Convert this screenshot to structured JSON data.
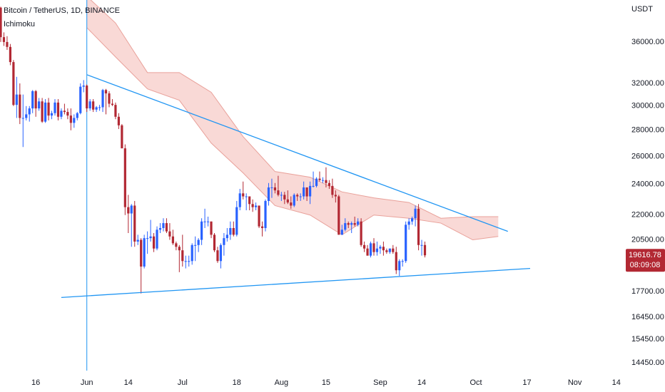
{
  "chart_data": {
    "type": "candlestick",
    "title": "Bitcoin / TetherUS, 1D, BINANCE",
    "subtitle": "Ichimoku",
    "y_axis_label": "USDT",
    "countdown": "08:09:08",
    "log_scale": true,
    "up_color": "#2962ff",
    "down_color": "#b22833",
    "ylim": [
      14130,
      40570
    ],
    "yticks": [
      {
        "value": 36000,
        "label": "36000.00"
      },
      {
        "value": 32000,
        "label": "32000.00"
      },
      {
        "value": 30000,
        "label": "30000.00"
      },
      {
        "value": 28000,
        "label": "28000.00"
      },
      {
        "value": 26000,
        "label": "26000.00"
      },
      {
        "value": 24000,
        "label": "24000.00"
      },
      {
        "value": 22000,
        "label": "22000.00"
      },
      {
        "value": 20500,
        "label": "20500.00"
      },
      {
        "value": 17700,
        "label": "17700.00"
      },
      {
        "value": 16450,
        "label": "16450.00"
      },
      {
        "value": 15450,
        "label": "15450.00"
      },
      {
        "value": 14450,
        "label": "14450.00"
      }
    ],
    "xticks": [
      {
        "value": "May 16",
        "label": "16"
      },
      {
        "value": "Jun 1",
        "label": "Jun"
      },
      {
        "value": "Jun 14",
        "label": "14"
      },
      {
        "value": "Jul 1",
        "label": "Jul"
      },
      {
        "value": "Jul 18",
        "label": "18"
      },
      {
        "value": "Aug 1",
        "label": "Aug"
      },
      {
        "value": "Aug 15",
        "label": "15"
      },
      {
        "value": "Sep 1",
        "label": "Sep"
      },
      {
        "value": "Sep 14",
        "label": "14"
      },
      {
        "value": "Oct 1",
        "label": "Oct"
      },
      {
        "value": "Oct 17",
        "label": "17"
      },
      {
        "value": "Nov 1",
        "label": "Nov"
      },
      {
        "value": "Nov 14",
        "label": "14"
      }
    ],
    "x": [
      "May 5",
      "May 6",
      "May 7",
      "May 8",
      "May 9",
      "May 10",
      "May 11",
      "May 12",
      "May 13",
      "May 14",
      "May 15",
      "May 16",
      "May 17",
      "May 18",
      "May 19",
      "May 20",
      "May 21",
      "May 22",
      "May 23",
      "May 24",
      "May 25",
      "May 26",
      "May 27",
      "May 28",
      "May 29",
      "May 30",
      "May 31",
      "Jun 1",
      "Jun 2",
      "Jun 3",
      "Jun 4",
      "Jun 5",
      "Jun 6",
      "Jun 7",
      "Jun 8",
      "Jun 9",
      "Jun 10",
      "Jun 11",
      "Jun 12",
      "Jun 13",
      "Jun 14",
      "Jun 15",
      "Jun 16",
      "Jun 17",
      "Jun 18",
      "Jun 19",
      "Jun 20",
      "Jun 21",
      "Jun 22",
      "Jun 23",
      "Jun 24",
      "Jun 25",
      "Jun 26",
      "Jun 27",
      "Jun 28",
      "Jun 29",
      "Jun 30",
      "Jul 1",
      "Jul 2",
      "Jul 3",
      "Jul 4",
      "Jul 5",
      "Jul 6",
      "Jul 7",
      "Jul 8",
      "Jul 9",
      "Jul 10",
      "Jul 11",
      "Jul 12",
      "Jul 13",
      "Jul 14",
      "Jul 15",
      "Jul 16",
      "Jul 17",
      "Jul 18",
      "Jul 19",
      "Jul 20",
      "Jul 21",
      "Jul 22",
      "Jul 23",
      "Jul 24",
      "Jul 25",
      "Jul 26",
      "Jul 27",
      "Jul 28",
      "Jul 29",
      "Jul 30",
      "Jul 31",
      "Aug 1",
      "Aug 2",
      "Aug 3",
      "Aug 4",
      "Aug 5",
      "Aug 6",
      "Aug 7",
      "Aug 8",
      "Aug 9",
      "Aug 10",
      "Aug 11",
      "Aug 12",
      "Aug 13",
      "Aug 14",
      "Aug 15",
      "Aug 16",
      "Aug 17",
      "Aug 18",
      "Aug 19",
      "Aug 20",
      "Aug 21",
      "Aug 22",
      "Aug 23",
      "Aug 24",
      "Aug 25",
      "Aug 26",
      "Aug 27",
      "Aug 28",
      "Aug 29",
      "Aug 30",
      "Aug 31",
      "Sep 1",
      "Sep 2",
      "Sep 3",
      "Sep 4",
      "Sep 5",
      "Sep 6",
      "Sep 7",
      "Sep 8",
      "Sep 9",
      "Sep 10",
      "Sep 11",
      "Sep 12",
      "Sep 13",
      "Sep 14",
      "Sep 15"
    ],
    "open": [
      39700,
      36500,
      36000,
      35500,
      34000,
      30100,
      31000,
      29000,
      29000,
      29300,
      29800,
      31300,
      29800,
      30400,
      28700,
      30300,
      29200,
      29400,
      30300,
      29100,
      29600,
      29500,
      29200,
      28600,
      29000,
      29400,
      31700,
      31800,
      29800,
      30400,
      29700,
      29900,
      29900,
      31400,
      31100,
      30200,
      30100,
      29100,
      28400,
      26600,
      22500,
      22100,
      22600,
      20400,
      20500,
      19000,
      20600,
      20600,
      20700,
      20000,
      21100,
      21200,
      21500,
      21000,
      20700,
      20300,
      20100,
      19900,
      19300,
      19300,
      19300,
      20200,
      20200,
      20500,
      21600,
      21600,
      21600,
      20800,
      19900,
      19300,
      20200,
      20600,
      20800,
      21200,
      20800,
      22500,
      23400,
      23200,
      23200,
      22700,
      22500,
      22600,
      21300,
      21200,
      22900,
      23800,
      23800,
      23600,
      23300,
      23300,
      23000,
      22800,
      22600,
      23300,
      23200,
      23200,
      23800,
      23200,
      23900,
      23900,
      24400,
      24300,
      24300,
      24100,
      23900,
      23300,
      23200,
      20800,
      21100,
      21500,
      21400,
      21500,
      21400,
      21600,
      20200,
      20000,
      19600,
      20300,
      19800,
      20000,
      20100,
      19900,
      19800,
      20000,
      19800,
      18800,
      19300,
      19300,
      21400,
      21600,
      21800,
      22400,
      20200,
      20200
    ],
    "high": [
      39800,
      37000,
      36600,
      35800,
      34200,
      32600,
      32000,
      31000,
      30000,
      30000,
      31400,
      31400,
      30700,
      30700,
      30600,
      30700,
      29600,
      30600,
      30600,
      29800,
      30200,
      29800,
      29800,
      29300,
      29500,
      32000,
      32300,
      31900,
      30600,
      30600,
      30000,
      30100,
      31500,
      31500,
      31300,
      30600,
      30300,
      29400,
      28500,
      26900,
      23300,
      22700,
      22900,
      20800,
      20600,
      20800,
      21000,
      21700,
      20900,
      21300,
      21500,
      21800,
      21800,
      21500,
      21100,
      20400,
      20200,
      20800,
      19600,
      19600,
      20300,
      20700,
      20600,
      21800,
      22400,
      21900,
      21600,
      20900,
      20100,
      20300,
      20900,
      21200,
      21600,
      21600,
      22900,
      23700,
      24200,
      23400,
      23000,
      23000,
      22800,
      22600,
      21600,
      23000,
      24100,
      24400,
      24100,
      24600,
      23500,
      23500,
      23600,
      23200,
      23400,
      23400,
      23400,
      24200,
      23800,
      24200,
      24900,
      24500,
      24900,
      24500,
      25200,
      24300,
      24400,
      23600,
      23300,
      21400,
      21800,
      21600,
      21600,
      21900,
      21800,
      21800,
      20400,
      20200,
      20400,
      20600,
      20400,
      20200,
      20400,
      20000,
      20000,
      20200,
      20100,
      19400,
      19400,
      21600,
      21800,
      21900,
      22600,
      22700,
      20500,
      20400
    ],
    "low": [
      36000,
      35600,
      35200,
      33700,
      30000,
      29000,
      28500,
      26700,
      28800,
      28700,
      29400,
      29100,
      29600,
      28600,
      28600,
      28800,
      28900,
      29200,
      28800,
      28900,
      29300,
      28900,
      28000,
      28200,
      28800,
      29300,
      31200,
      29500,
      29600,
      29500,
      29500,
      29600,
      29500,
      29300,
      29900,
      30000,
      28900,
      28100,
      26600,
      22000,
      20900,
      20100,
      20100,
      20200,
      17600,
      18900,
      19700,
      20400,
      19800,
      19900,
      20900,
      21000,
      20900,
      20500,
      20200,
      19900,
      18700,
      19000,
      18900,
      19000,
      19100,
      19300,
      19800,
      20200,
      21200,
      21300,
      20600,
      19800,
      19200,
      18900,
      19600,
      20400,
      20500,
      20700,
      20700,
      22300,
      23000,
      22300,
      22300,
      22200,
      22300,
      21200,
      20700,
      21000,
      22600,
      23100,
      23400,
      23200,
      22900,
      22700,
      22700,
      22400,
      22500,
      22900,
      22900,
      23000,
      22900,
      22700,
      23800,
      23800,
      24200,
      24100,
      23800,
      23700,
      23100,
      22800,
      20800,
      20800,
      21000,
      21200,
      20900,
      21300,
      21300,
      20100,
      19800,
      19600,
      19500,
      19600,
      19600,
      19700,
      19600,
      19700,
      19700,
      19700,
      18600,
      18500,
      19000,
      19200,
      21100,
      21400,
      21300,
      19900,
      19600,
      19500
    ],
    "close": [
      36500,
      36000,
      35500,
      34000,
      30100,
      31000,
      29000,
      29000,
      29300,
      29800,
      31300,
      29800,
      30400,
      28700,
      30300,
      29200,
      29400,
      30300,
      29100,
      29600,
      29500,
      29200,
      28600,
      29000,
      29400,
      31700,
      31800,
      29800,
      30400,
      29700,
      29900,
      29900,
      31400,
      31100,
      30200,
      30100,
      29100,
      28400,
      26600,
      22500,
      22100,
      22600,
      20400,
      20500,
      19000,
      20600,
      20600,
      20700,
      20000,
      21100,
      21200,
      21500,
      21000,
      20700,
      20300,
      20100,
      19900,
      19300,
      19300,
      19300,
      20200,
      20200,
      20500,
      21600,
      21600,
      21600,
      20800,
      19900,
      19300,
      20200,
      20600,
      20800,
      21200,
      20800,
      22500,
      23400,
      23200,
      23200,
      22700,
      22500,
      22600,
      21300,
      21200,
      22900,
      23800,
      23800,
      23600,
      23300,
      23300,
      23000,
      22800,
      22600,
      23300,
      23200,
      23200,
      23800,
      23200,
      23900,
      23900,
      24400,
      24300,
      24300,
      24100,
      23900,
      23300,
      23200,
      20800,
      21100,
      21500,
      21400,
      21500,
      21400,
      21600,
      20200,
      20000,
      19600,
      20300,
      19800,
      20000,
      20100,
      19900,
      19800,
      20000,
      19800,
      18800,
      19300,
      19300,
      21400,
      21600,
      21800,
      22400,
      20200,
      20200,
      19616.78
    ],
    "cloud": {
      "color": "#f6c9c5",
      "line_color": "#e9a19a",
      "x": [
        "Jun 1",
        "Jun 10",
        "Jun 20",
        "Jun 30",
        "Jul 10",
        "Jul 20",
        "Jul 30",
        "Aug 10",
        "Aug 20",
        "Aug 30",
        "Sep 10",
        "Sep 20",
        "Sep 30",
        "Oct 8"
      ],
      "span_a": [
        41000,
        38000,
        33000,
        33000,
        31200,
        27500,
        24900,
        24500,
        23500,
        23100,
        22800,
        21800,
        21900,
        21900
      ],
      "span_b": [
        37500,
        34500,
        31500,
        30500,
        27000,
        24800,
        22600,
        22000,
        20800,
        22000,
        21800,
        21500,
        20500,
        20700
      ]
    },
    "trendlines": [
      {
        "x": [
          "Jun 1",
          "Oct 11"
        ],
        "values": [
          32800,
          21000
        ],
        "color": "#2196f3"
      },
      {
        "x": [
          "May 24",
          "Oct 18"
        ],
        "values": [
          17400,
          18900
        ],
        "color": "#2196f3"
      }
    ],
    "vertical_line": {
      "x": "Jun 1",
      "color": "#2196f3"
    }
  }
}
